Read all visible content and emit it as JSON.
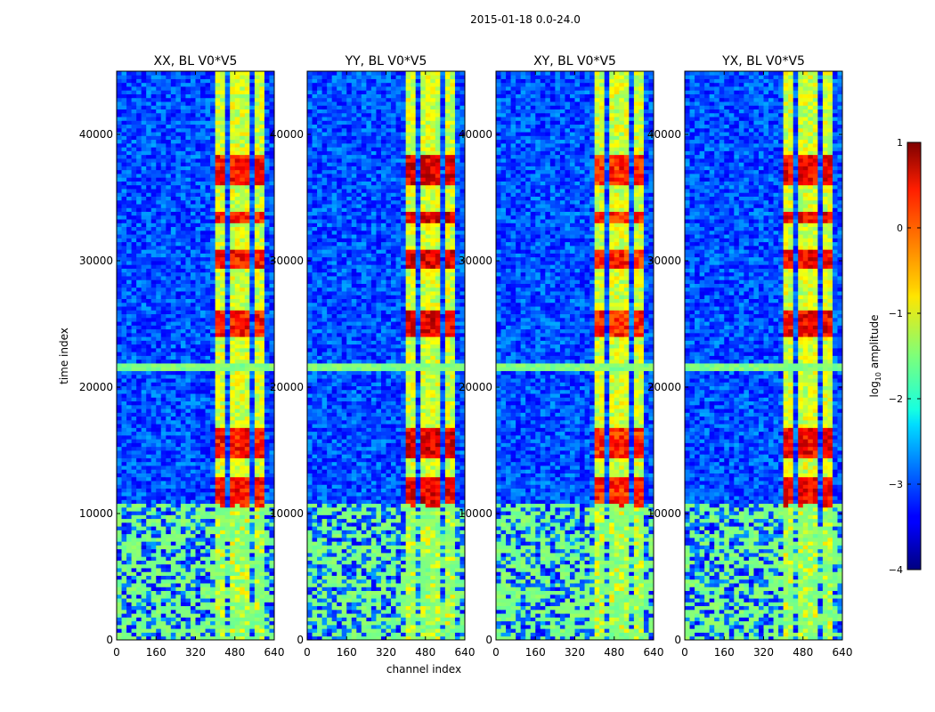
{
  "chart_data": {
    "type": "heatmap",
    "suptitle": "2015-01-18 0.0-24.0",
    "xlabel": "channel index",
    "ylabel": "time index",
    "xlim": [
      0,
      640
    ],
    "ylim": [
      0,
      45000
    ],
    "xticks": [
      0,
      160,
      320,
      480,
      640
    ],
    "yticks": [
      0,
      10000,
      20000,
      30000,
      40000
    ],
    "panels": [
      {
        "title": "XX, BL V0*V5",
        "baseline_level": -3.0,
        "strong_level": 0.7
      },
      {
        "title": "YY, BL V0*V5",
        "baseline_level": -3.0,
        "strong_level": 0.9
      },
      {
        "title": "XY, BL V0*V5",
        "baseline_level": -3.0,
        "strong_level": 0.6
      },
      {
        "title": "YX, BL V0*V5",
        "baseline_level": -3.0,
        "strong_level": 0.8
      }
    ],
    "signal_band_channels": [
      400,
      595
    ],
    "signal_band_gaps": [
      442,
      455,
      495,
      507,
      545,
      557
    ],
    "strong_time_ranges": [
      [
        14500,
        16800
      ],
      [
        10500,
        13000
      ],
      [
        24000,
        26000
      ],
      [
        29500,
        31000
      ],
      [
        33000,
        34000
      ],
      [
        36000,
        38500
      ]
    ],
    "flagged_time_ranges": [
      [
        21300,
        22000
      ],
      [
        0,
        10800
      ]
    ],
    "flag_level": -1.5,
    "colorbar": {
      "label_main": "log",
      "label_sub": "10",
      "label_rest": " amplitude",
      "ticks": [
        1,
        0,
        -1,
        -2,
        -3,
        -4
      ],
      "tick_labels": [
        "1",
        "0",
        "−1",
        "−2",
        "−3",
        "−4"
      ],
      "vmin": -4,
      "vmax": 1,
      "colormap": "jet"
    }
  }
}
